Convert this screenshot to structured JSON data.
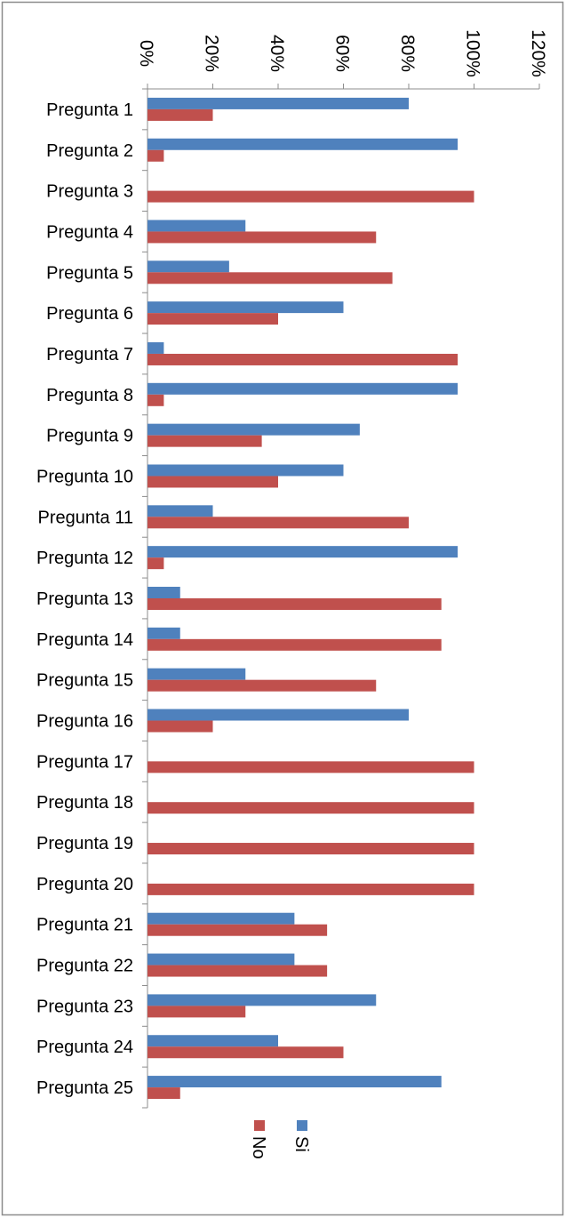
{
  "chart_data": {
    "type": "bar",
    "orientation": "horizontal",
    "categories": [
      "Pregunta 1",
      "Pregunta 2",
      "Pregunta 3",
      "Pregunta 4",
      "Pregunta 5",
      "Pregunta 6",
      "Pregunta 7",
      "Pregunta 8",
      "Pregunta 9",
      "Pregunta 10",
      "Pregunta 11",
      "Pregunta 12",
      "Pregunta 13",
      "Pregunta 14",
      "Pregunta 15",
      "Pregunta 16",
      "Pregunta 17",
      "Pregunta 18",
      "Pregunta 19",
      "Pregunta 20",
      "Pregunta 21",
      "Pregunta 22",
      "Pregunta 23",
      "Pregunta 24",
      "Pregunta 25"
    ],
    "series": [
      {
        "name": "Si",
        "color": "#4F81BD",
        "values": [
          80,
          95,
          0,
          30,
          25,
          60,
          5,
          95,
          65,
          60,
          20,
          95,
          10,
          10,
          30,
          80,
          0,
          0,
          0,
          0,
          45,
          45,
          70,
          40,
          90
        ]
      },
      {
        "name": "No",
        "color": "#C0504D",
        "values": [
          20,
          5,
          100,
          70,
          75,
          40,
          95,
          5,
          35,
          40,
          80,
          5,
          90,
          90,
          70,
          20,
          100,
          100,
          100,
          100,
          55,
          55,
          30,
          60,
          10
        ]
      }
    ],
    "value_axis": {
      "min": 0,
      "max": 120,
      "step": 20,
      "tick_labels": [
        "0%",
        "20%",
        "40%",
        "60%",
        "80%",
        "100%",
        "120%"
      ],
      "rotation": "rotated 90 degrees clockwise"
    },
    "grid": false,
    "legend_position": "bottom",
    "legend_order": [
      "No",
      "Si"
    ]
  }
}
